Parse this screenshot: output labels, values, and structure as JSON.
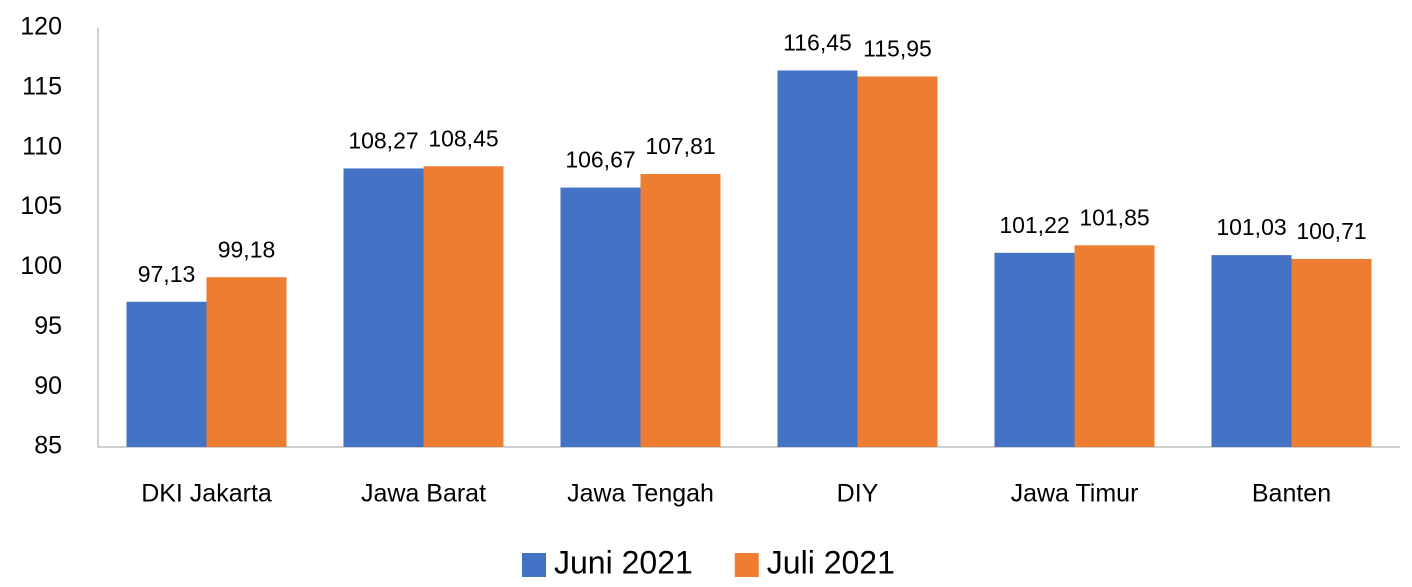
{
  "chart_data": {
    "type": "bar",
    "categories": [
      "DKI Jakarta",
      "Jawa Barat",
      "Jawa Tengah",
      "DIY",
      "Jawa Timur",
      "Banten"
    ],
    "series": [
      {
        "name": "Juni 2021",
        "color": "#4472c4",
        "values": [
          97.13,
          108.27,
          106.67,
          116.45,
          101.22,
          101.03
        ],
        "value_labels": [
          "97,13",
          "108,27",
          "106,67",
          "116,45",
          "101,22",
          "101,03"
        ]
      },
      {
        "name": "Juli 2021",
        "color": "#ed7d31",
        "values": [
          99.18,
          108.45,
          107.81,
          115.95,
          101.85,
          100.71
        ],
        "value_labels": [
          "99,18",
          "108,45",
          "107,81",
          "115,95",
          "101,85",
          "100,71"
        ]
      }
    ],
    "ylim": [
      85,
      120
    ],
    "yticks": [
      85,
      90,
      95,
      100,
      105,
      110,
      115,
      120
    ],
    "grid": false,
    "legend": "bottom"
  }
}
